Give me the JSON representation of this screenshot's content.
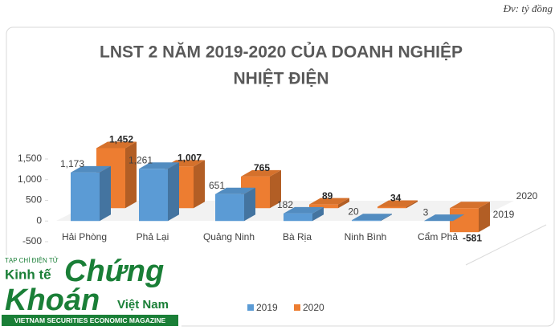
{
  "unit_note": "Đv: tỷ đồng",
  "chart_data": {
    "type": "bar",
    "title": [
      "LNST 2 NĂM 2019-2020 CỦA DOANH NGHIỆP",
      "NHIỆT ĐIỆN"
    ],
    "categories": [
      "Hải Phòng",
      "Phả Lại",
      "Quảng Ninh",
      "Bà Rịa",
      "Ninh Bình",
      "Cẩm Phả"
    ],
    "series": [
      {
        "name": "2019",
        "color": "#5b9bd5",
        "values": [
          1173,
          1261,
          651,
          182,
          20,
          3
        ],
        "value_labels": [
          "1,173",
          "1,261",
          "651",
          "182",
          "20",
          "3"
        ]
      },
      {
        "name": "2020",
        "color": "#ed7d31",
        "values": [
          1452,
          1007,
          765,
          89,
          34,
          -581
        ],
        "value_labels": [
          "1,452",
          "1,007",
          "765",
          "89",
          "34",
          "-581"
        ]
      }
    ],
    "ylim": [
      -500,
      1500
    ],
    "yticks": [
      -500,
      0,
      500,
      {
        "value": 1000,
        "label": "1,000"
      },
      {
        "value": 1500,
        "label": "1,500"
      }
    ],
    "legend": "bottom"
  },
  "logo": {
    "top": "TẠP CHÍ ĐIỆN TỬ",
    "left1": "Kinh tế",
    "big1": "Chứng",
    "big2": "Khoán",
    "right": "Việt Nam",
    "bottom": "VIETNAM SECURITIES ECONOMIC MAGAZINE"
  }
}
